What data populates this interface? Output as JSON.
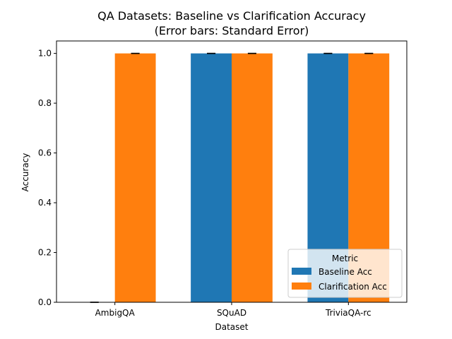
{
  "chart_data": {
    "type": "bar",
    "title_line1": "QA Datasets: Baseline vs Clarification Accuracy",
    "title_line2": "(Error bars: Standard Error)",
    "xlabel": "Dataset",
    "ylabel": "Accuracy",
    "categories": [
      "AmbigQA",
      "SQuAD",
      "TriviaQA-rc"
    ],
    "ylim": [
      0,
      1.05
    ],
    "yticks": [
      "0.0",
      "0.2",
      "0.4",
      "0.6",
      "0.8",
      "1.0"
    ],
    "series": [
      {
        "name": "Baseline Acc",
        "color": "#1f77b4",
        "values": [
          0.0,
          1.0,
          1.0
        ],
        "errors": [
          0,
          0,
          0
        ]
      },
      {
        "name": "Clarification Acc",
        "color": "#ff7f0e",
        "values": [
          1.0,
          1.0,
          1.0
        ],
        "errors": [
          0,
          0,
          0
        ]
      }
    ],
    "legend_title": "Metric",
    "legend_position": "lower-right",
    "grid": false
  }
}
